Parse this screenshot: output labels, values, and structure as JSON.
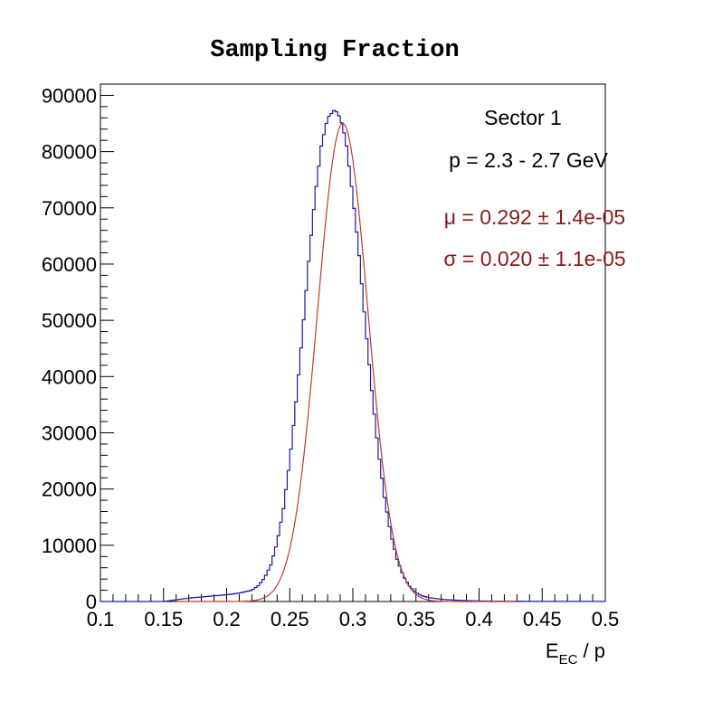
{
  "chart_data": {
    "type": "histogram",
    "title": "Sampling Fraction",
    "xlabel_main": "E",
    "xlabel_sub": "EC",
    "xlabel_rest": " / p",
    "ylabel": "",
    "xlim": [
      0.1,
      0.5
    ],
    "ylim": [
      0,
      92000
    ],
    "x_ticks": [
      0.1,
      0.15,
      0.2,
      0.25,
      0.3,
      0.35,
      0.4,
      0.45,
      0.5
    ],
    "x_tick_labels": [
      "0.1",
      "0.15",
      "0.2",
      "0.25",
      "0.3",
      "0.35",
      "0.4",
      "0.45",
      "0.5"
    ],
    "y_ticks": [
      0,
      10000,
      20000,
      30000,
      40000,
      50000,
      60000,
      70000,
      80000,
      90000
    ],
    "y_tick_labels": [
      "0",
      "10000",
      "20000",
      "30000",
      "40000",
      "50000",
      "60000",
      "70000",
      "80000",
      "90000"
    ],
    "grid": false,
    "bin_width": 0.002,
    "histogram": {
      "x": [
        0.16,
        0.17,
        0.18,
        0.19,
        0.2,
        0.21,
        0.22,
        0.225,
        0.23,
        0.235,
        0.24,
        0.245,
        0.25,
        0.255,
        0.26,
        0.265,
        0.27,
        0.275,
        0.28,
        0.285,
        0.288,
        0.292,
        0.295,
        0.3,
        0.305,
        0.31,
        0.315,
        0.32,
        0.325,
        0.33,
        0.335,
        0.34,
        0.345,
        0.35,
        0.355,
        0.36,
        0.37,
        0.38,
        0.39,
        0.4,
        0.42,
        0.45
      ],
      "values": [
        300,
        600,
        800,
        1000,
        1200,
        1500,
        2000,
        2800,
        4200,
        6500,
        10500,
        16500,
        25000,
        35500,
        47500,
        60500,
        72000,
        81000,
        86000,
        87300,
        87000,
        84500,
        81000,
        72000,
        61500,
        49000,
        37500,
        27000,
        18500,
        12000,
        7500,
        4500,
        2700,
        1600,
        1000,
        700,
        400,
        250,
        150,
        100,
        50,
        20
      ]
    },
    "fit": {
      "type": "gaussian",
      "color": "#c0392b",
      "mu": 0.292,
      "sigma": 0.02,
      "amplitude": 85000
    },
    "histogram_color": "#1a1aaa",
    "annotations": {
      "sector": "Sector 1",
      "momentum": "p = 2.3 - 2.7 GeV",
      "mu_text": "μ = 0.292 ± 1.4e-05",
      "sigma_text": "σ = 0.020 ± 1.1e-05"
    }
  }
}
